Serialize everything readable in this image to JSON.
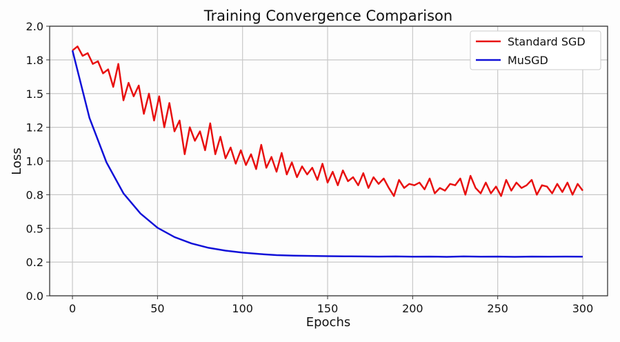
{
  "chart_data": {
    "type": "line",
    "title": "Training Convergence Comparison",
    "xlabel": "Epochs",
    "ylabel": "Loss",
    "xlim": [
      -13.4,
      314.6
    ],
    "ylim": [
      0,
      2.0
    ],
    "grid": true,
    "legend_placement": "top-right",
    "x_ticks": [
      0,
      50,
      100,
      150,
      200,
      250,
      300
    ],
    "x_tick_labels": [
      "0",
      "50",
      "100",
      "150",
      "200",
      "250",
      "300"
    ],
    "y_ticks": [
      0,
      0.25,
      0.5,
      0.75,
      1.0,
      1.25,
      1.5,
      1.75,
      2.0
    ],
    "y_tick_labels": [
      "0.0",
      "0.2",
      "0.5",
      "0.8",
      "1.0",
      "1.2",
      "1.5",
      "1.8",
      "2.0"
    ],
    "series": [
      {
        "name": "Standard SGD",
        "color": "#e81010",
        "x_start": 0,
        "x_step": 3,
        "values": [
          1.82,
          1.85,
          1.78,
          1.8,
          1.72,
          1.74,
          1.65,
          1.68,
          1.55,
          1.72,
          1.45,
          1.58,
          1.48,
          1.56,
          1.35,
          1.5,
          1.3,
          1.48,
          1.25,
          1.43,
          1.22,
          1.3,
          1.05,
          1.25,
          1.15,
          1.22,
          1.08,
          1.28,
          1.05,
          1.18,
          1.02,
          1.1,
          0.98,
          1.08,
          0.97,
          1.05,
          0.94,
          1.12,
          0.95,
          1.03,
          0.92,
          1.06,
          0.9,
          0.99,
          0.88,
          0.96,
          0.9,
          0.95,
          0.86,
          0.98,
          0.84,
          0.92,
          0.82,
          0.93,
          0.85,
          0.88,
          0.82,
          0.91,
          0.8,
          0.88,
          0.83,
          0.87,
          0.8,
          0.74,
          0.86,
          0.8,
          0.83,
          0.82,
          0.84,
          0.79,
          0.87,
          0.76,
          0.8,
          0.78,
          0.83,
          0.82,
          0.87,
          0.75,
          0.89,
          0.8,
          0.76,
          0.84,
          0.76,
          0.81,
          0.74,
          0.86,
          0.78,
          0.84,
          0.8,
          0.82,
          0.86,
          0.75,
          0.82,
          0.81,
          0.76,
          0.83,
          0.77,
          0.84,
          0.75,
          0.83,
          0.78
        ]
      },
      {
        "name": "MuSGD",
        "color": "#1010d8",
        "x_start": 0,
        "x_step": 10,
        "values": [
          1.82,
          1.32,
          0.99,
          0.76,
          0.61,
          0.505,
          0.436,
          0.388,
          0.356,
          0.335,
          0.32,
          0.31,
          0.302,
          0.298,
          0.296,
          0.294,
          0.293,
          0.292,
          0.291,
          0.292,
          0.29,
          0.291,
          0.289,
          0.292,
          0.29,
          0.291,
          0.289,
          0.291,
          0.29,
          0.291,
          0.29
        ]
      }
    ]
  }
}
